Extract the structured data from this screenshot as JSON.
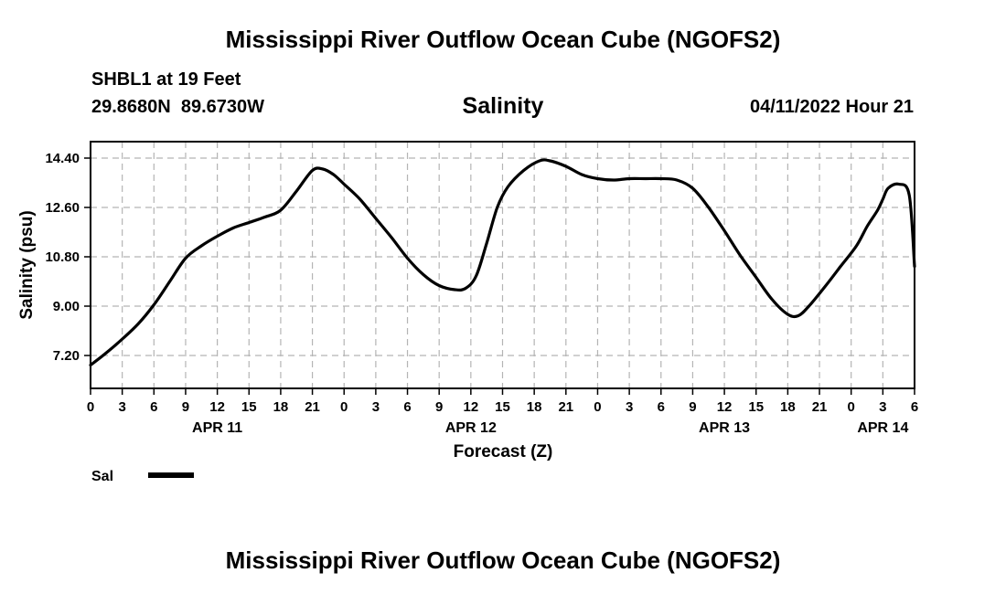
{
  "header": {
    "title": "Mississippi River Outflow Ocean Cube (NGOFS2)",
    "station": "SHBL1 at 19 Feet",
    "coords": "29.8680N  89.6730W",
    "datetime": "04/11/2022 Hour 21"
  },
  "footer": {
    "title": "Mississippi River Outflow Ocean Cube (NGOFS2)"
  },
  "chart_data": {
    "type": "line",
    "title": "Salinity",
    "xlabel": "Forecast (Z)",
    "ylabel": "Salinity (psu)",
    "xlim": [
      0,
      78
    ],
    "ylim": [
      6.0,
      15.0
    ],
    "grid": true,
    "y_ticks": [
      7.2,
      9.0,
      10.8,
      12.6,
      14.4
    ],
    "y_tick_labels": [
      "7.20",
      "9.00",
      "10.80",
      "12.60",
      "14.40"
    ],
    "x_ticks": [
      0,
      3,
      6,
      9,
      12,
      15,
      18,
      21,
      24,
      27,
      30,
      33,
      36,
      39,
      42,
      45,
      48,
      51,
      54,
      57,
      60,
      63,
      66,
      69,
      72,
      75,
      78
    ],
    "x_tick_labels": [
      "0",
      "3",
      "6",
      "9",
      "12",
      "15",
      "18",
      "21",
      "0",
      "3",
      "6",
      "9",
      "12",
      "15",
      "18",
      "21",
      "0",
      "3",
      "6",
      "9",
      "12",
      "15",
      "18",
      "21",
      "0",
      "3",
      "6"
    ],
    "date_labels": [
      {
        "x": 12,
        "label": "APR 11"
      },
      {
        "x": 36,
        "label": "APR 12"
      },
      {
        "x": 60,
        "label": "APR 13"
      },
      {
        "x": 75,
        "label": "APR 14"
      }
    ],
    "legend": {
      "label": "Sal",
      "placement": "bottom-left"
    },
    "series": [
      {
        "name": "Sal",
        "x": [
          0,
          1.5,
          3,
          4.5,
          6,
          7.5,
          9,
          10.5,
          12,
          13.5,
          15,
          16.5,
          18,
          19.5,
          21,
          22,
          23,
          24,
          25.5,
          27,
          28.5,
          30,
          31.5,
          33,
          34.5,
          35.5,
          36.5,
          37.5,
          38.5,
          39.5,
          41,
          42.5,
          43.5,
          45,
          46.5,
          48,
          49.5,
          51,
          52.5,
          54,
          55.5,
          57,
          58.5,
          60,
          61.5,
          63,
          64.5,
          66,
          67,
          68,
          69.5,
          71,
          72.5,
          73.5,
          74.5,
          75,
          75.5,
          76.5,
          77.5,
          78
        ],
        "y": [
          6.85,
          7.3,
          7.8,
          8.35,
          9.05,
          9.9,
          10.75,
          11.2,
          11.55,
          11.85,
          12.05,
          12.25,
          12.5,
          13.2,
          13.95,
          14.0,
          13.8,
          13.45,
          12.9,
          12.2,
          11.5,
          10.75,
          10.15,
          9.75,
          9.6,
          9.65,
          10.1,
          11.3,
          12.6,
          13.35,
          13.95,
          14.3,
          14.3,
          14.1,
          13.8,
          13.65,
          13.6,
          13.65,
          13.65,
          13.65,
          13.6,
          13.3,
          12.6,
          11.75,
          10.85,
          10.05,
          9.25,
          8.7,
          8.65,
          9.0,
          9.7,
          10.45,
          11.2,
          11.9,
          12.5,
          12.9,
          13.3,
          13.45,
          13.05,
          10.45
        ]
      }
    ]
  }
}
